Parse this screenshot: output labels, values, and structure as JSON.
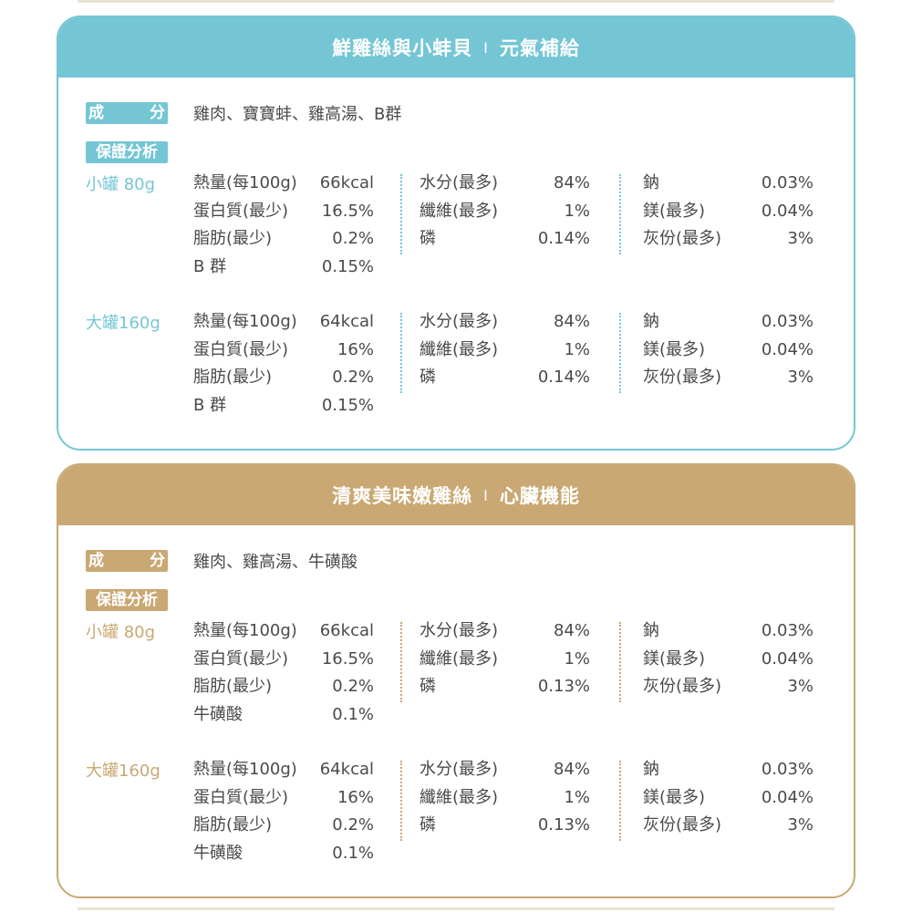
{
  "colors": {
    "blue": "#74c6d4",
    "tan": "#c9a873"
  },
  "cards": [
    {
      "theme": "blue",
      "title": "鮮雞絲與小蚌貝",
      "divider": "I",
      "subtitle": "元氣補給",
      "ingredients_label": [
        "成",
        "分"
      ],
      "ingredients": "雞肉、寶寶蚌、雞高湯、B群",
      "analysis_label": "保證分析",
      "sizes": [
        {
          "label": "小罐 80g",
          "rows": [
            [
              [
                "熱量(每100g)",
                "66kcal"
              ],
              [
                "水分(最多)",
                "84%"
              ],
              [
                "鈉",
                "0.03%"
              ]
            ],
            [
              [
                "蛋白質(最少)",
                "16.5%"
              ],
              [
                "纖維(最多)",
                "1%"
              ],
              [
                "鎂(最多)",
                "0.04%"
              ]
            ],
            [
              [
                "脂肪(最少)",
                "0.2%"
              ],
              [
                "磷",
                "0.14%"
              ],
              [
                "灰份(最多)",
                "3%"
              ]
            ],
            [
              [
                "B 群",
                "0.15%"
              ]
            ]
          ]
        },
        {
          "label": "大罐160g",
          "rows": [
            [
              [
                "熱量(每100g)",
                "64kcal"
              ],
              [
                "水分(最多)",
                "84%"
              ],
              [
                "鈉",
                "0.03%"
              ]
            ],
            [
              [
                "蛋白質(最少)",
                "16%"
              ],
              [
                "纖維(最多)",
                "1%"
              ],
              [
                "鎂(最多)",
                "0.04%"
              ]
            ],
            [
              [
                "脂肪(最少)",
                "0.2%"
              ],
              [
                "磷",
                "0.14%"
              ],
              [
                "灰份(最多)",
                "3%"
              ]
            ],
            [
              [
                "B 群",
                "0.15%"
              ]
            ]
          ]
        }
      ]
    },
    {
      "theme": "tan",
      "title": "清爽美味嫩雞絲",
      "divider": "I",
      "subtitle": "心臟機能",
      "ingredients_label": [
        "成",
        "分"
      ],
      "ingredients": "雞肉、雞高湯、牛磺酸",
      "analysis_label": "保證分析",
      "sizes": [
        {
          "label": "小罐 80g",
          "rows": [
            [
              [
                "熱量(每100g)",
                "66kcal"
              ],
              [
                "水分(最多)",
                "84%"
              ],
              [
                "鈉",
                "0.03%"
              ]
            ],
            [
              [
                "蛋白質(最少)",
                "16.5%"
              ],
              [
                "纖維(最多)",
                "1%"
              ],
              [
                "鎂(最多)",
                "0.04%"
              ]
            ],
            [
              [
                "脂肪(最少)",
                "0.2%"
              ],
              [
                "磷",
                "0.13%"
              ],
              [
                "灰份(最多)",
                "3%"
              ]
            ],
            [
              [
                "牛磺酸",
                "0.1%"
              ]
            ]
          ]
        },
        {
          "label": "大罐160g",
          "rows": [
            [
              [
                "熱量(每100g)",
                "64kcal"
              ],
              [
                "水分(最多)",
                "84%"
              ],
              [
                "鈉",
                "0.03%"
              ]
            ],
            [
              [
                "蛋白質(最少)",
                "16%"
              ],
              [
                "纖維(最多)",
                "1%"
              ],
              [
                "鎂(最多)",
                "0.04%"
              ]
            ],
            [
              [
                "脂肪(最少)",
                "0.2%"
              ],
              [
                "磷",
                "0.13%"
              ],
              [
                "灰份(最多)",
                "3%"
              ]
            ],
            [
              [
                "牛磺酸",
                "0.1%"
              ]
            ]
          ]
        }
      ]
    }
  ]
}
